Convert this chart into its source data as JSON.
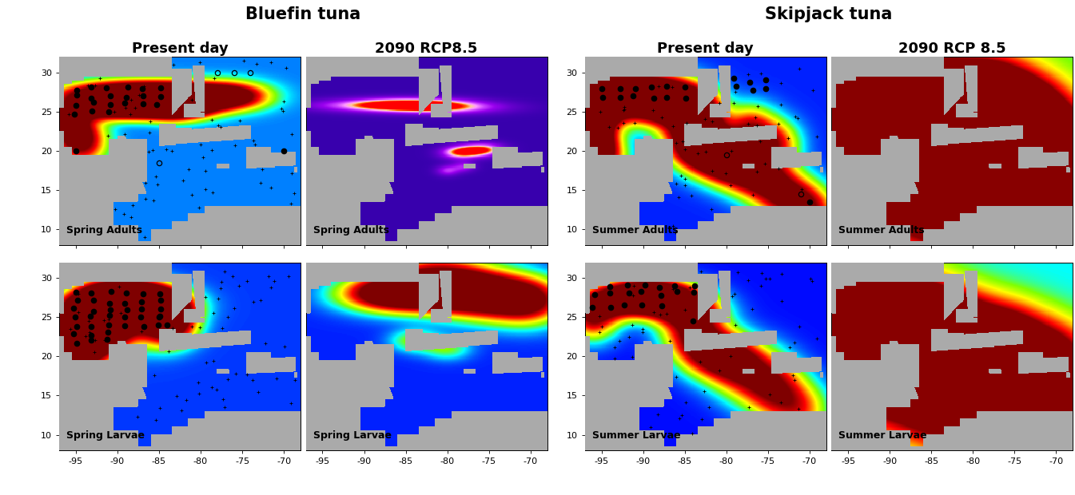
{
  "fig_width": 13.45,
  "fig_height": 6.2,
  "dpi": 100,
  "lon_min": -97,
  "lon_max": -68,
  "lat_min": 8,
  "lat_max": 32,
  "lon_ticks": [
    -95,
    -90,
    -85,
    -80,
    -75,
    -70
  ],
  "lat_ticks": [
    10,
    15,
    20,
    25,
    30
  ],
  "group_titles": [
    "Bluefin tuna",
    "Skipjack tuna"
  ],
  "col_titles_left": [
    "Present day",
    "2090 RCP8.5"
  ],
  "col_titles_right": [
    "Present day",
    "2090 RCP 8.5"
  ],
  "panel_labels": [
    [
      "Spring Adults",
      "Spring Adults",
      "Summer Adults",
      "Summer Adults"
    ],
    [
      "Spring Larvae",
      "Spring Larvae",
      "Summer Larvae",
      "Summer Larvae"
    ]
  ],
  "land_color": [
    0.67,
    0.67,
    0.67
  ],
  "title_fontsize": 14,
  "col_title_fontsize": 13,
  "panel_label_fontsize": 9,
  "tick_fontsize": 8
}
